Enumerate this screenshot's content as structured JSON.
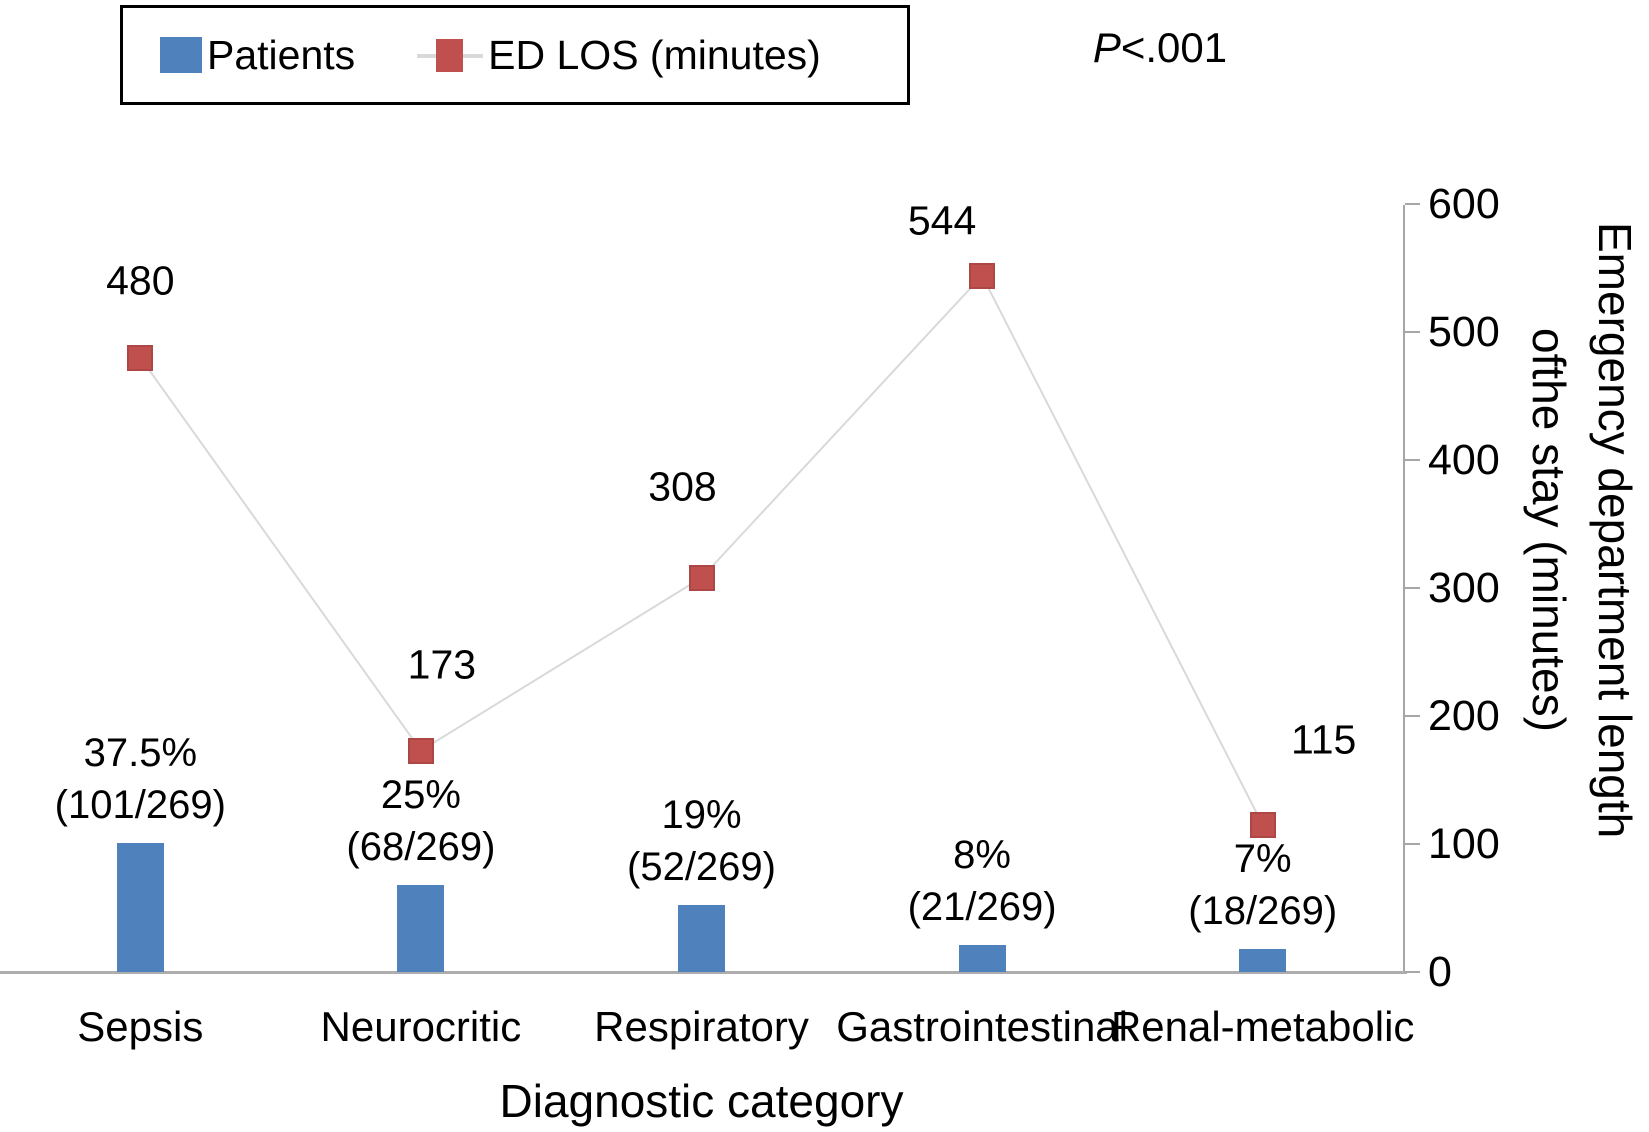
{
  "legend": {
    "patients_label": "Patients",
    "edlos_label": "ED LOS (minutes)"
  },
  "annotation": {
    "p_italic": "P",
    "p_rest": "<.001",
    "full": "P<.001"
  },
  "chart_data": {
    "type": "bar",
    "subtype": "combo bar + line with square markers",
    "categories": [
      "Sepsis",
      "Neurocritic",
      "Respiratory",
      "Gastrointestinal",
      "Renal-metabolic"
    ],
    "series": [
      {
        "name": "Patients",
        "type": "bar",
        "color": "#4F81BD",
        "percents": [
          37.5,
          25,
          19,
          8,
          7
        ],
        "counts": [
          101,
          68,
          52,
          21,
          18
        ],
        "total": 269,
        "percent_labels": [
          "37.5%",
          "25%",
          "19%",
          "8%",
          "7%"
        ],
        "fraction_labels": [
          "(101/269)",
          "(68/269)",
          "(52/269)",
          "(21/269)",
          "(18/269)"
        ]
      },
      {
        "name": "ED LOS (minutes)",
        "type": "line",
        "marker": "square",
        "color": "#C0504D",
        "line_color": "#D9D9D9",
        "values": [
          480,
          173,
          308,
          544,
          115
        ]
      }
    ],
    "xlabel": "Diagnostic category",
    "ylabel_right_line1": "Emergency department length",
    "ylabel_right_line2": "ofthe stay (minutes)",
    "y_right": {
      "min": 0,
      "max": 600,
      "tick_step": 100,
      "ticks": [
        0,
        100,
        200,
        300,
        400,
        500,
        600
      ]
    },
    "y_axis_side": "right",
    "grid": false,
    "legend_position": "top-left",
    "annotation": "P<.001"
  }
}
